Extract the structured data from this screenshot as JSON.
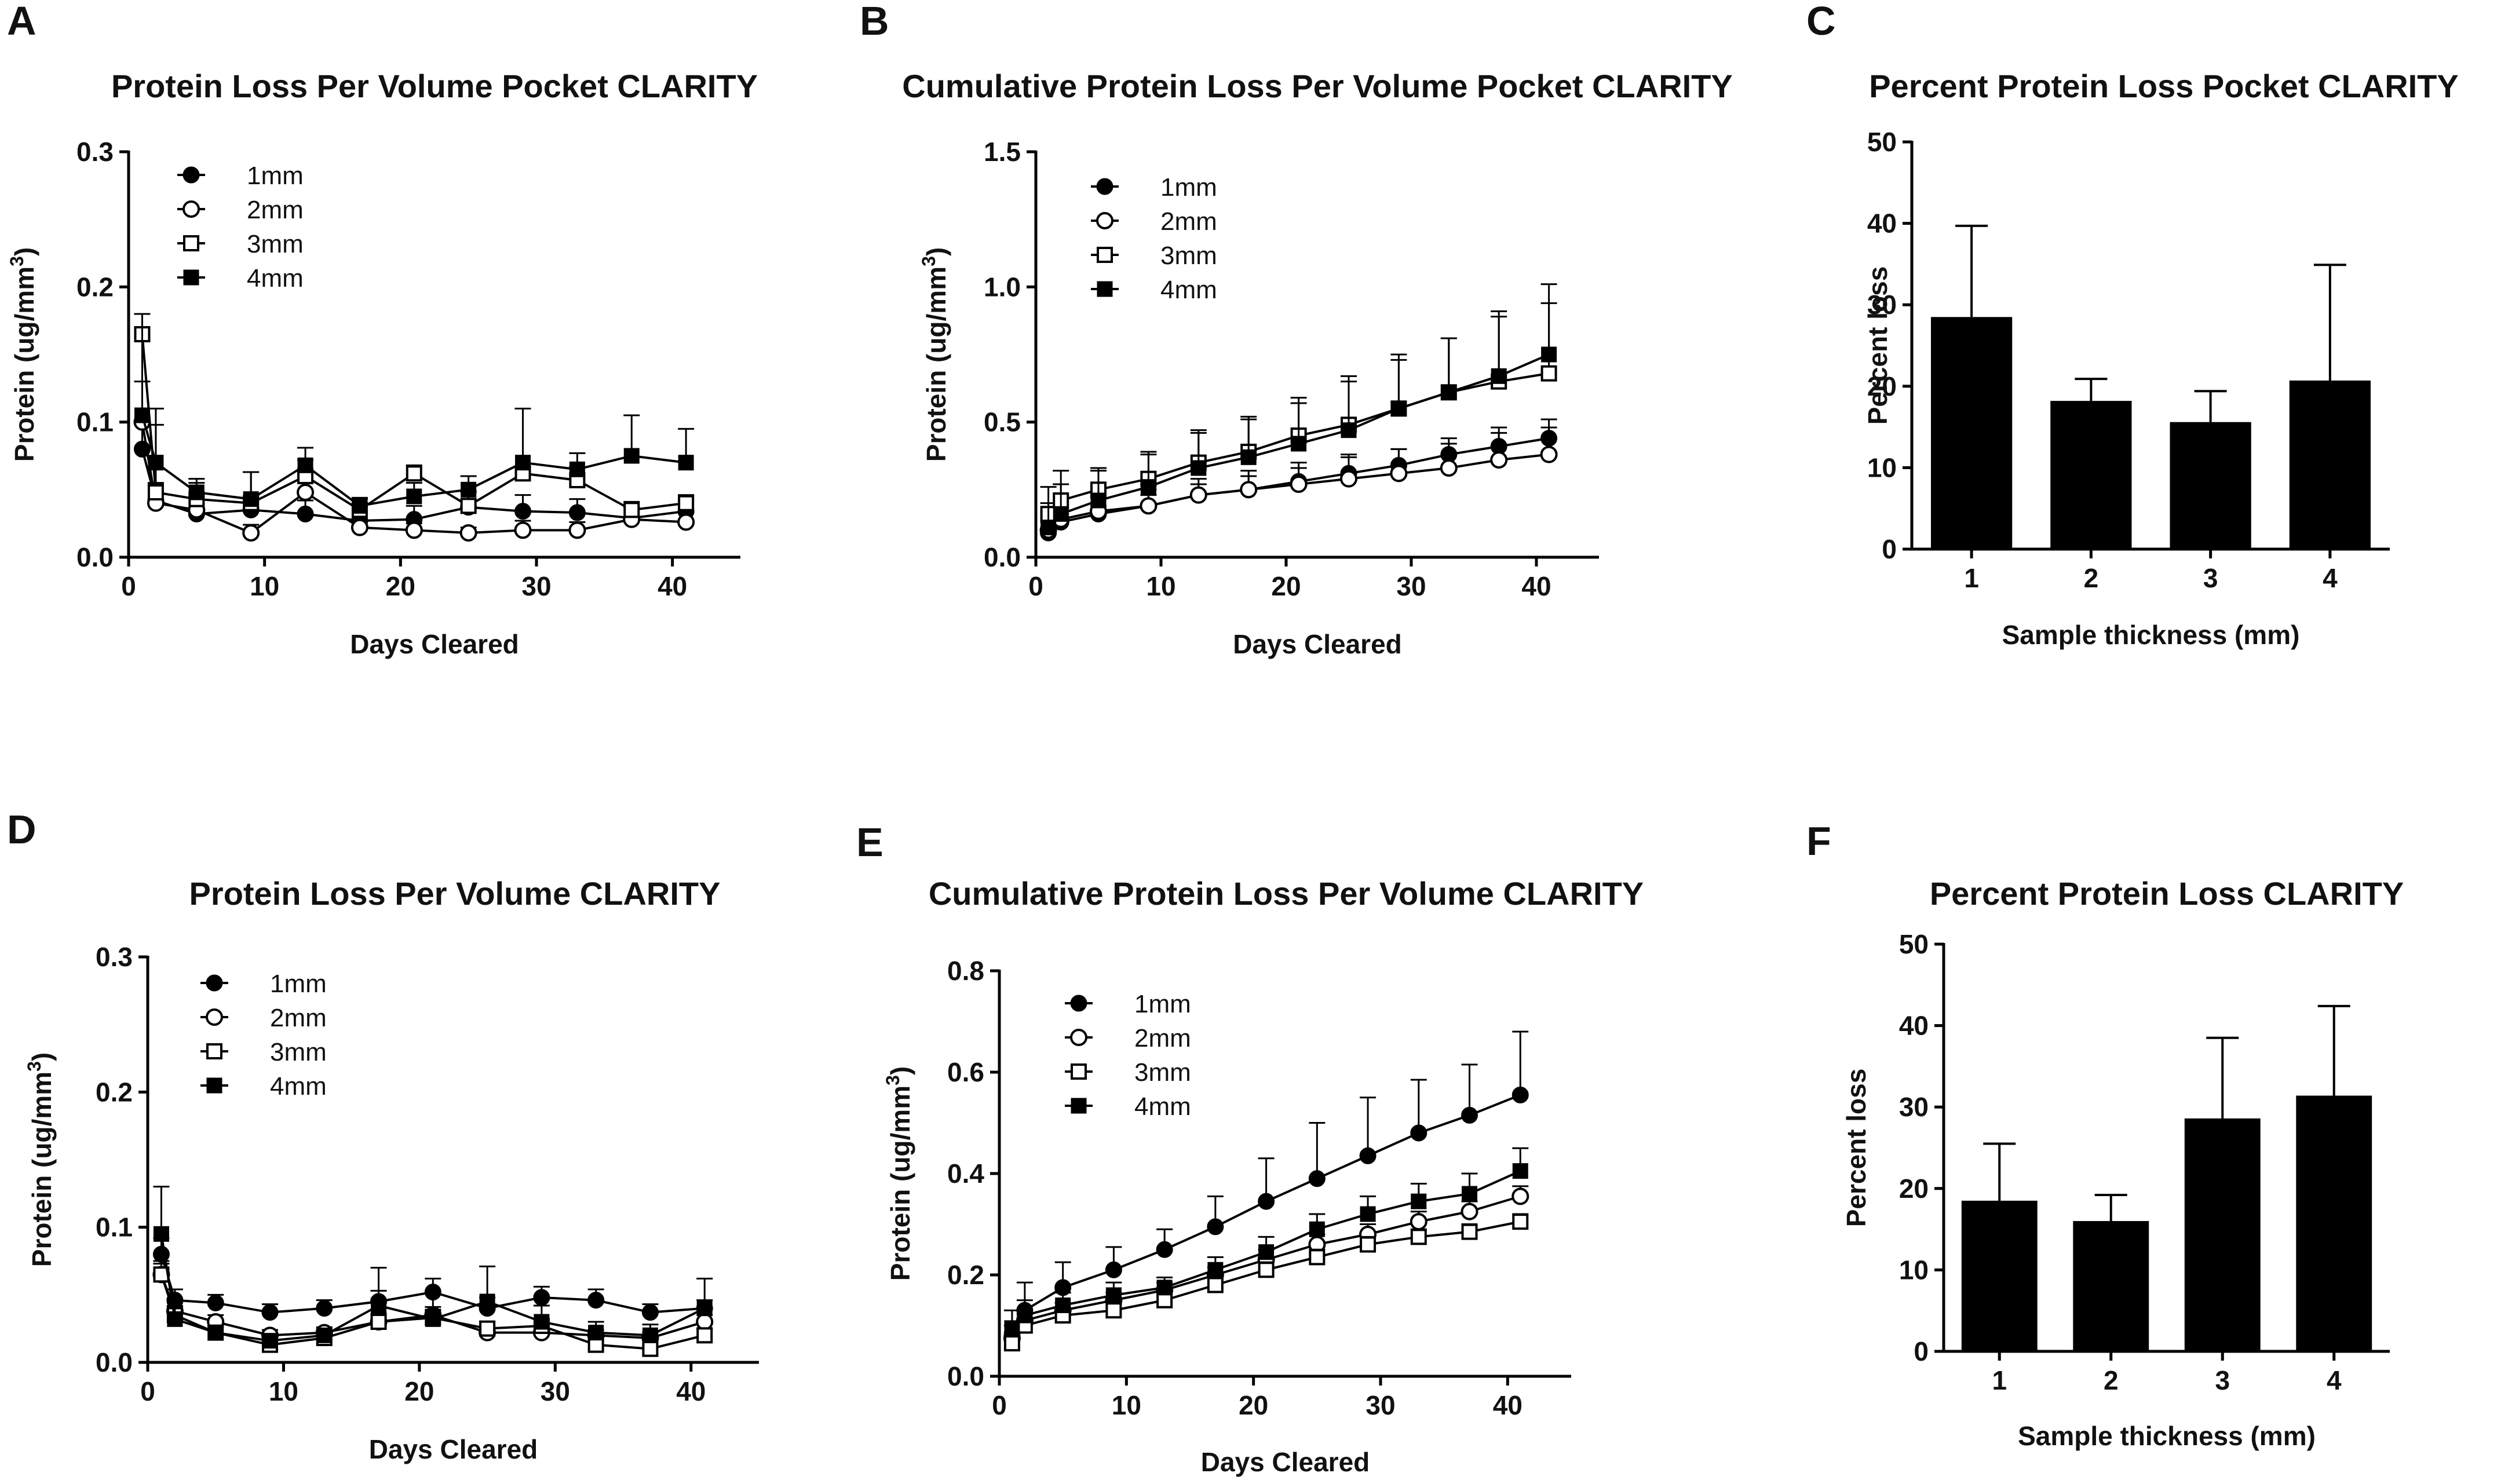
{
  "chart_data": [
    {
      "panel": "A",
      "type": "line",
      "title": "Protein Loss Per Volume Pocket CLARITY",
      "xlabel": "Days Cleared",
      "ylabel": "Protein (ug/mm",
      "ylabel_sup": "3",
      "ylabel_close": ")",
      "xlim": [
        0,
        45
      ],
      "ylim": [
        0,
        0.3
      ],
      "xticks": [
        0,
        10,
        20,
        30,
        40
      ],
      "xtick_labels": [
        "0",
        "10",
        "20",
        "30",
        "40"
      ],
      "yticks": [
        0,
        0.1,
        0.2,
        0.3
      ],
      "ytick_labels": [
        "0.0",
        "0.1",
        "0.2",
        "0.3"
      ],
      "x": [
        1,
        2,
        5,
        9,
        13,
        17,
        21,
        25,
        29,
        33,
        37,
        41
      ],
      "series": [
        {
          "name": "1mm",
          "marker": "filled-circle",
          "values": [
            0.08,
            0.042,
            0.032,
            0.035,
            0.032,
            0.027,
            0.028,
            0.037,
            0.034,
            0.033,
            0.029,
            0.034
          ],
          "errors": [
            0.02,
            0.012,
            0.008,
            0.01,
            0.01,
            0.01,
            0.01,
            0.012,
            0.012,
            0.01,
            0.008,
            0.008
          ]
        },
        {
          "name": "2mm",
          "marker": "open-circle",
          "values": [
            0.1,
            0.04,
            0.035,
            0.018,
            0.048,
            0.022,
            0.02,
            0.018,
            0.02,
            0.02,
            0.028,
            0.026
          ],
          "errors": [
            0.03,
            0.015,
            0.01,
            0.006,
            0.015,
            0.006,
            0.005,
            0.004,
            0.007,
            0.006,
            0.009,
            0.007
          ]
        },
        {
          "name": "3mm",
          "marker": "open-square",
          "values": [
            0.165,
            0.048,
            0.043,
            0.04,
            0.06,
            0.035,
            0.062,
            0.038,
            0.062,
            0.057,
            0.035,
            0.04
          ],
          "errors": [
            0.015,
            0.05,
            0.012,
            0.023,
            0.012,
            0.008,
            0.006,
            0.01,
            0.005,
            0.01,
            0.006,
            0.006
          ]
        },
        {
          "name": "4mm",
          "marker": "filled-square",
          "values": [
            0.105,
            0.07,
            0.048,
            0.043,
            0.068,
            0.038,
            0.045,
            0.05,
            0.07,
            0.065,
            0.075,
            0.07
          ],
          "errors": [
            0.075,
            0.04,
            0.01,
            0.02,
            0.013,
            0.006,
            0.01,
            0.01,
            0.04,
            0.012,
            0.03,
            0.025
          ]
        }
      ]
    },
    {
      "panel": "B",
      "type": "line",
      "title": "Cumulative Protein Loss Per Volume Pocket CLARITY",
      "xlabel": "Days Cleared",
      "ylabel": "Protein (ug/mm",
      "ylabel_sup": "3",
      "ylabel_close": ")",
      "xlim": [
        0,
        45
      ],
      "ylim": [
        0,
        1.5
      ],
      "xticks": [
        0,
        10,
        20,
        30,
        40
      ],
      "xtick_labels": [
        "0",
        "10",
        "20",
        "30",
        "40"
      ],
      "yticks": [
        0,
        0.5,
        1.0,
        1.5
      ],
      "ytick_labels": [
        "0.0",
        "0.5",
        "1.0",
        "1.5"
      ],
      "x": [
        1,
        2,
        5,
        9,
        13,
        17,
        21,
        25,
        29,
        33,
        37,
        41
      ],
      "series": [
        {
          "name": "1mm",
          "marker": "filled-circle",
          "values": [
            0.09,
            0.13,
            0.16,
            0.19,
            0.23,
            0.25,
            0.28,
            0.31,
            0.34,
            0.38,
            0.41,
            0.44
          ],
          "errors": [
            0.02,
            0.03,
            0.03,
            0.04,
            0.04,
            0.05,
            0.05,
            0.06,
            0.06,
            0.06,
            0.07,
            0.07
          ]
        },
        {
          "name": "2mm",
          "marker": "open-circle",
          "values": [
            0.1,
            0.14,
            0.17,
            0.19,
            0.23,
            0.25,
            0.27,
            0.29,
            0.31,
            0.33,
            0.36,
            0.38
          ],
          "errors": [
            0.03,
            0.04,
            0.05,
            0.06,
            0.06,
            0.07,
            0.08,
            0.09,
            0.09,
            0.09,
            0.1,
            0.1
          ]
        },
        {
          "name": "3mm",
          "marker": "open-square",
          "values": [
            0.16,
            0.21,
            0.25,
            0.29,
            0.35,
            0.39,
            0.45,
            0.49,
            0.55,
            0.61,
            0.65,
            0.68
          ],
          "errors": [
            0.04,
            0.06,
            0.07,
            0.09,
            0.11,
            0.12,
            0.14,
            0.16,
            0.18,
            0.2,
            0.24,
            0.26
          ]
        },
        {
          "name": "4mm",
          "marker": "filled-square",
          "values": [
            0.11,
            0.16,
            0.21,
            0.26,
            0.33,
            0.37,
            0.42,
            0.47,
            0.55,
            0.61,
            0.67,
            0.75
          ],
          "errors": [
            0.15,
            0.16,
            0.12,
            0.13,
            0.14,
            0.15,
            0.15,
            0.2,
            0.2,
            0.2,
            0.24,
            0.26
          ]
        }
      ]
    },
    {
      "panel": "C",
      "type": "bar",
      "title": "Percent Protein Loss Pocket CLARITY",
      "xlabel": "Sample thickness (mm)",
      "ylabel": "Percent loss",
      "categories": [
        "1",
        "2",
        "3",
        "4"
      ],
      "values": [
        28.5,
        18.2,
        15.6,
        20.7
      ],
      "errors": [
        11.2,
        2.7,
        3.8,
        14.2
      ],
      "ylim": [
        0,
        50
      ],
      "yticks": [
        0,
        10,
        20,
        30,
        40,
        50
      ],
      "ytick_labels": [
        "0",
        "10",
        "20",
        "30",
        "40",
        "50"
      ]
    },
    {
      "panel": "D",
      "type": "line",
      "title": "Protein Loss Per Volume CLARITY",
      "xlabel": "Days Cleared",
      "ylabel": "Protein (ug/mm",
      "ylabel_sup": "3",
      "ylabel_close": ")",
      "xlim": [
        0,
        45
      ],
      "ylim": [
        0,
        0.3
      ],
      "xticks": [
        0,
        10,
        20,
        30,
        40
      ],
      "xtick_labels": [
        "0",
        "10",
        "20",
        "30",
        "40"
      ],
      "yticks": [
        0,
        0.1,
        0.2,
        0.3
      ],
      "ytick_labels": [
        "0.0",
        "0.1",
        "0.2",
        "0.3"
      ],
      "x": [
        1,
        2,
        5,
        9,
        13,
        17,
        21,
        25,
        29,
        33,
        37,
        41
      ],
      "series": [
        {
          "name": "1mm",
          "marker": "filled-circle",
          "values": [
            0.08,
            0.046,
            0.044,
            0.037,
            0.04,
            0.045,
            0.052,
            0.04,
            0.048,
            0.046,
            0.037,
            0.04
          ],
          "errors": [
            0.012,
            0.008,
            0.006,
            0.006,
            0.006,
            0.008,
            0.01,
            0.008,
            0.008,
            0.008,
            0.006,
            0.006
          ]
        },
        {
          "name": "2mm",
          "marker": "open-circle",
          "values": [
            0.065,
            0.038,
            0.03,
            0.02,
            0.022,
            0.03,
            0.035,
            0.022,
            0.022,
            0.02,
            0.018,
            0.03
          ],
          "errors": [
            0.01,
            0.006,
            0.005,
            0.004,
            0.004,
            0.006,
            0.006,
            0.005,
            0.005,
            0.004,
            0.004,
            0.005
          ]
        },
        {
          "name": "3mm",
          "marker": "open-square",
          "values": [
            0.065,
            0.035,
            0.022,
            0.013,
            0.018,
            0.03,
            0.033,
            0.025,
            0.027,
            0.013,
            0.01,
            0.02
          ],
          "errors": [
            0.008,
            0.006,
            0.004,
            0.003,
            0.004,
            0.006,
            0.006,
            0.005,
            0.005,
            0.003,
            0.003,
            0.005
          ]
        },
        {
          "name": "4mm",
          "marker": "filled-square",
          "values": [
            0.095,
            0.032,
            0.022,
            0.016,
            0.02,
            0.042,
            0.032,
            0.045,
            0.03,
            0.022,
            0.02,
            0.04
          ],
          "errors": [
            0.035,
            0.01,
            0.005,
            0.004,
            0.005,
            0.028,
            0.02,
            0.026,
            0.012,
            0.008,
            0.008,
            0.022
          ]
        }
      ]
    },
    {
      "panel": "E",
      "type": "line",
      "title": "Cumulative Protein Loss Per Volume CLARITY",
      "xlabel": "Days Cleared",
      "ylabel": "Protein (ug/mm",
      "ylabel_sup": "3",
      "ylabel_close": ")",
      "xlim": [
        0,
        45
      ],
      "ylim": [
        0,
        0.8
      ],
      "xticks": [
        0,
        10,
        20,
        30,
        40
      ],
      "xtick_labels": [
        "0",
        "10",
        "20",
        "30",
        "40"
      ],
      "yticks": [
        0,
        0.2,
        0.4,
        0.6,
        0.8
      ],
      "ytick_labels": [
        "0.0",
        "0.2",
        "0.4",
        "0.6",
        "0.8"
      ],
      "x": [
        1,
        2,
        5,
        9,
        13,
        17,
        21,
        25,
        29,
        33,
        37,
        41
      ],
      "series": [
        {
          "name": "1mm",
          "marker": "filled-circle",
          "values": [
            0.08,
            0.13,
            0.175,
            0.21,
            0.25,
            0.295,
            0.345,
            0.39,
            0.435,
            0.48,
            0.515,
            0.555
          ],
          "errors": [
            0.02,
            0.055,
            0.05,
            0.045,
            0.04,
            0.06,
            0.085,
            0.11,
            0.115,
            0.105,
            0.1,
            0.125
          ]
        },
        {
          "name": "2mm",
          "marker": "open-circle",
          "values": [
            0.075,
            0.11,
            0.13,
            0.15,
            0.17,
            0.2,
            0.23,
            0.26,
            0.28,
            0.305,
            0.325,
            0.355
          ],
          "errors": [
            0.012,
            0.012,
            0.015,
            0.015,
            0.015,
            0.015,
            0.02,
            0.02,
            0.02,
            0.02,
            0.02,
            0.02
          ]
        },
        {
          "name": "3mm",
          "marker": "open-square",
          "values": [
            0.065,
            0.1,
            0.12,
            0.13,
            0.15,
            0.18,
            0.21,
            0.235,
            0.26,
            0.275,
            0.285,
            0.305
          ],
          "errors": [
            0.01,
            0.01,
            0.01,
            0.012,
            0.012,
            0.012,
            0.015,
            0.015,
            0.015,
            0.015,
            0.015,
            0.015
          ]
        },
        {
          "name": "4mm",
          "marker": "filled-square",
          "values": [
            0.095,
            0.12,
            0.14,
            0.16,
            0.175,
            0.21,
            0.245,
            0.29,
            0.32,
            0.345,
            0.36,
            0.405
          ],
          "errors": [
            0.035,
            0.03,
            0.025,
            0.025,
            0.02,
            0.025,
            0.03,
            0.03,
            0.035,
            0.035,
            0.04,
            0.045
          ]
        }
      ]
    },
    {
      "panel": "F",
      "type": "bar",
      "title": "Percent Protein Loss CLARITY",
      "xlabel": "Sample thickness (mm)",
      "ylabel": "Percent loss",
      "categories": [
        "1",
        "2",
        "3",
        "4"
      ],
      "values": [
        18.5,
        16.0,
        28.6,
        31.4
      ],
      "errors": [
        7.0,
        3.2,
        9.9,
        11.0
      ],
      "ylim": [
        0,
        50
      ],
      "yticks": [
        0,
        10,
        20,
        30,
        40,
        50
      ],
      "ytick_labels": [
        "0",
        "10",
        "20",
        "30",
        "40",
        "50"
      ]
    }
  ]
}
